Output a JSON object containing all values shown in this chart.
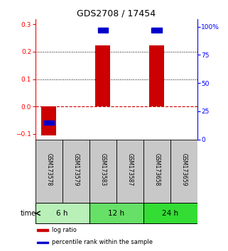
{
  "title": "GDS2708 / 17454",
  "samples": [
    "GSM173578",
    "GSM173579",
    "GSM173583",
    "GSM173587",
    "GSM173658",
    "GSM173659"
  ],
  "time_groups": [
    {
      "label": "6 h",
      "indices": [
        0,
        1
      ],
      "color": "#b8f0b8"
    },
    {
      "label": "12 h",
      "indices": [
        2,
        3
      ],
      "color": "#66e066"
    },
    {
      "label": "24 h",
      "indices": [
        4,
        5
      ],
      "color": "#33dd33"
    }
  ],
  "log_ratio": [
    -0.105,
    0.0,
    0.222,
    0.0,
    0.222,
    0.0
  ],
  "percentile_rank": [
    15.0,
    -999,
    97.0,
    -999,
    97.0,
    -999
  ],
  "left_ylim": [
    -0.12,
    0.32
  ],
  "right_ylim": [
    0,
    107
  ],
  "left_yticks": [
    -0.1,
    0.0,
    0.1,
    0.2,
    0.3
  ],
  "right_yticks": [
    0,
    25,
    50,
    75,
    100
  ],
  "right_ytick_labels": [
    "0",
    "25",
    "50",
    "75",
    "100%"
  ],
  "hlines_dotted": [
    0.1,
    0.2
  ],
  "bar_color": "#cc0000",
  "square_color": "#0000cc",
  "zero_line_color": "#cc0000",
  "background_color": "#ffffff",
  "sample_box_color": "#c8c8c8",
  "bar_width": 0.55
}
